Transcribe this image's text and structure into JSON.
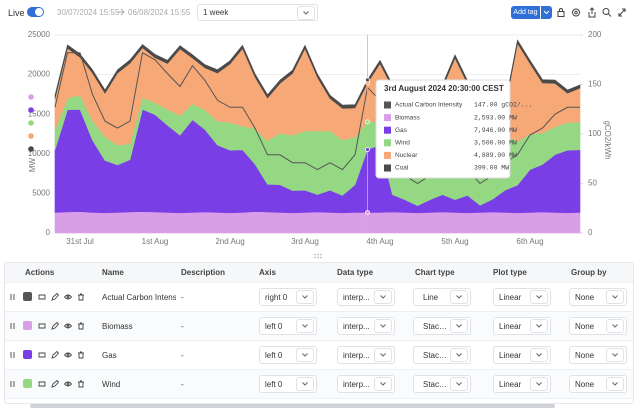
{
  "toolbar": {
    "live": "Live",
    "from": "30/07/2024 15:55",
    "to": "06/08/2024 15:55",
    "range": "1 week",
    "add_tag": "Add tag"
  },
  "chart_data": {
    "type": "area",
    "stacked": true,
    "categories": [
      null,
      null,
      "31st Jul",
      null,
      null,
      null,
      null,
      null,
      "1st Aug",
      null,
      null,
      null,
      null,
      null,
      "2nd Aug",
      null,
      null,
      null,
      null,
      null,
      "3rd Aug",
      null,
      null,
      null,
      null,
      null,
      "4th Aug",
      null,
      null,
      null,
      null,
      null,
      "5th Aug",
      null,
      null,
      null,
      null,
      null,
      "6th Aug",
      null,
      null,
      null,
      null
    ],
    "ylabel": "MW",
    "y2label": "gCO2/kWh",
    "ylim": [
      0,
      25000
    ],
    "yticks": [
      0,
      5000,
      10000,
      15000,
      20000,
      25000
    ],
    "y2lim": [
      0,
      200
    ],
    "y2ticks": [
      0,
      50,
      100,
      150,
      200
    ],
    "grid": true,
    "series": [
      {
        "name": "Actual Carbon Intensity",
        "type": "line",
        "axis": "y2",
        "color": "#555555",
        "values": [
          127,
          182,
          182,
          140,
          113,
          106,
          113,
          182,
          175,
          161,
          148,
          169,
          154,
          134,
          127,
          127,
          106,
          79,
          79,
          71,
          71,
          64,
          71,
          64,
          79,
          147,
          134,
          64,
          58,
          50,
          58,
          64,
          58,
          64,
          50,
          58,
          71,
          79,
          99,
          106,
          120,
          127,
          127
        ]
      },
      {
        "name": "Biomass",
        "color": "#d99ee8",
        "values": [
          2600,
          2650,
          2700,
          2600,
          2550,
          2600,
          2650,
          2700,
          2650,
          2600,
          2550,
          2600,
          2650,
          2600,
          2550,
          2600,
          2700,
          2650,
          2600,
          2550,
          2600,
          2650,
          2600,
          2550,
          2600,
          2593,
          2600,
          2650,
          2600,
          2550,
          2600,
          2650,
          2600,
          2550,
          2600,
          2650,
          2600,
          2550,
          2600,
          2650,
          2600,
          2550,
          2600
        ]
      },
      {
        "name": "Gas",
        "color": "#7a3ee6",
        "values": [
          7900,
          12900,
          12900,
          9100,
          6600,
          6000,
          6600,
          12900,
          12300,
          11000,
          9800,
          11700,
          10400,
          8500,
          7900,
          7900,
          6000,
          3500,
          3500,
          2800,
          2800,
          2200,
          2800,
          2200,
          3500,
          7946,
          8500,
          2200,
          1600,
          900,
          1600,
          2200,
          1600,
          2200,
          900,
          1600,
          2800,
          3500,
          5400,
          6000,
          7300,
          7900,
          7900
        ]
      },
      {
        "name": "Wind",
        "color": "#95d884",
        "values": [
          2500,
          1500,
          1800,
          2500,
          3000,
          2500,
          2000,
          1500,
          1500,
          2000,
          2500,
          2000,
          2500,
          3000,
          3500,
          3000,
          4500,
          5500,
          6500,
          7000,
          7500,
          8000,
          7500,
          7000,
          6000,
          3500,
          3000,
          6500,
          8000,
          9000,
          8500,
          7500,
          6500,
          7500,
          8500,
          8000,
          7000,
          5500,
          4500,
          4000,
          3500,
          3500,
          3500
        ]
      },
      {
        "name": "Nuclear",
        "color": "#f7a877",
        "values": [
          4000,
          6300,
          4800,
          6000,
          5500,
          9100,
          10200,
          6300,
          5700,
          5800,
          8400,
          5800,
          5300,
          6100,
          7400,
          9800,
          6500,
          5400,
          6300,
          7800,
          10400,
          6800,
          4100,
          4000,
          3700,
          4889,
          7300,
          7000,
          3600,
          2600,
          4300,
          6000,
          11400,
          6600,
          4400,
          2900,
          3400,
          12400,
          8900,
          6300,
          5500,
          3700,
          4300
        ]
      },
      {
        "name": "Coal",
        "color": "#4a4a4a",
        "values": [
          400,
          400,
          400,
          400,
          400,
          400,
          400,
          400,
          400,
          400,
          400,
          400,
          400,
          400,
          400,
          400,
          400,
          400,
          400,
          400,
          400,
          400,
          400,
          400,
          400,
          399,
          400,
          400,
          400,
          400,
          400,
          400,
          400,
          400,
          400,
          400,
          400,
          400,
          400,
          400,
          400,
          400,
          400
        ]
      }
    ]
  },
  "tooltip": {
    "title": "3rd August 2024 20:30:00 CEST",
    "value_labels": [
      "147.00 gCO2/...",
      "2,593.00 MW",
      "7,946.00 MW",
      "3,500.00 MW",
      "4,889.00 MW",
      "399.00 MW"
    ]
  },
  "table": {
    "headers": [
      "Actions",
      "Name",
      "Description",
      "Axis",
      "Data type",
      "Chart type",
      "Plot type",
      "Group by"
    ],
    "rows": [
      {
        "description": "-",
        "axis": "right 0",
        "data_type": "interp...",
        "chart_type": "Line",
        "plot_type": "Linear",
        "group_by": "None"
      },
      {
        "description": "-",
        "axis": "left 0",
        "data_type": "interp...",
        "chart_type": "Stacke...",
        "plot_type": "Linear",
        "group_by": "None"
      },
      {
        "description": "-",
        "axis": "left 0",
        "data_type": "interp...",
        "chart_type": "Stacke...",
        "plot_type": "Linear",
        "group_by": "None"
      },
      {
        "description": "-",
        "axis": "left 0",
        "data_type": "interp...",
        "chart_type": "Stacke...",
        "plot_type": "Linear",
        "group_by": "None"
      }
    ]
  }
}
